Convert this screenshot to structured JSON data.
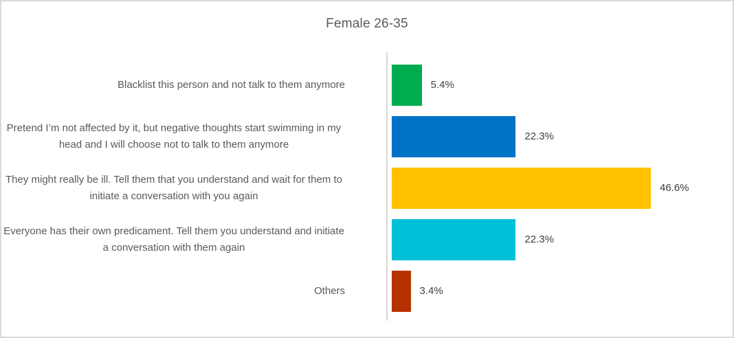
{
  "chart_data": {
    "type": "bar",
    "orientation": "horizontal",
    "title": "Female 26-35",
    "categories": [
      "Blacklist this person and not talk to them anymore",
      "Pretend I’m not affected by it, but negative thoughts start swimming in my head and I will choose not to talk to them anymore",
      "They might really be ill. Tell them that you understand and wait for them to initiate a conversation with you again",
      "Everyone has their own predicament. Tell them you understand and initiate a conversation with them again",
      "Others"
    ],
    "values": [
      5.4,
      22.3,
      46.6,
      22.3,
      3.4
    ],
    "value_labels": [
      "5.4%",
      "22.3%",
      "46.6%",
      "22.3%",
      "3.4%"
    ],
    "bar_colors": [
      "#00ac50",
      "#0072c6",
      "#ffc000",
      "#00c0d8",
      "#b53200"
    ],
    "xlabel": "",
    "ylabel": "",
    "xlim": [
      0,
      50
    ],
    "grid": false,
    "legend": false,
    "axis_color": "#d9d9d9",
    "text_color": "#595959",
    "value_text_color": "#404040"
  }
}
